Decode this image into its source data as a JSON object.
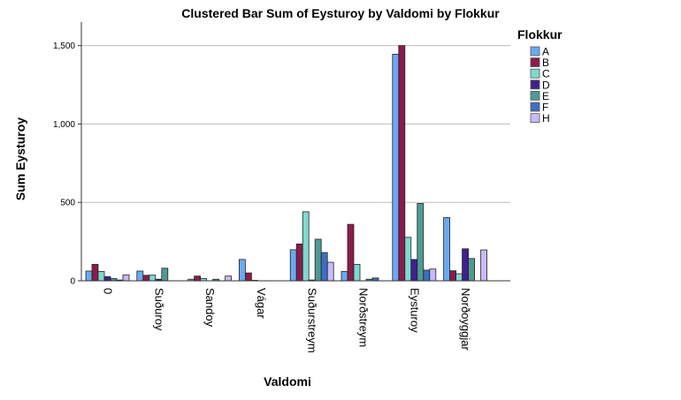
{
  "chart_data": {
    "type": "bar",
    "title": "Clustered Bar Sum of Eysturoy by Valdomi by Flokkur",
    "xlabel": "Valdomi",
    "ylabel": "Sum Eysturoy",
    "ylim": [
      0,
      1650
    ],
    "yticks": [
      0,
      500,
      1000,
      1500
    ],
    "ytick_labels": [
      "0",
      "500",
      "1,000",
      "1,500"
    ],
    "grid": true,
    "legend_title": "Flokkur",
    "legend_position": "right",
    "categories": [
      "0",
      "Suðuroy",
      "Sandoy",
      "Vágar",
      "Suðurstreym",
      "Norðstreym",
      "Eysturoy",
      "Norðoyggjar"
    ],
    "series": [
      {
        "name": "A",
        "color": "#6aaaf0",
        "values": [
          62,
          62,
          10,
          136,
          198,
          60,
          1445,
          403
        ]
      },
      {
        "name": "B",
        "color": "#8b1c4b",
        "values": [
          105,
          35,
          30,
          50,
          235,
          360,
          1500,
          64
        ]
      },
      {
        "name": "C",
        "color": "#80d8d0",
        "values": [
          60,
          36,
          15,
          3,
          440,
          105,
          277,
          45
        ]
      },
      {
        "name": "D",
        "color": "#40208f",
        "values": [
          27,
          10,
          0,
          0,
          5,
          0,
          136,
          204
        ]
      },
      {
        "name": "E",
        "color": "#4f9a94",
        "values": [
          15,
          80,
          10,
          0,
          265,
          10,
          493,
          142
        ]
      },
      {
        "name": "F",
        "color": "#3d6fc0",
        "values": [
          5,
          0,
          0,
          0,
          180,
          18,
          68,
          0
        ]
      },
      {
        "name": "H",
        "color": "#c9b9f8",
        "values": [
          38,
          0,
          30,
          0,
          118,
          0,
          75,
          197
        ]
      }
    ]
  }
}
